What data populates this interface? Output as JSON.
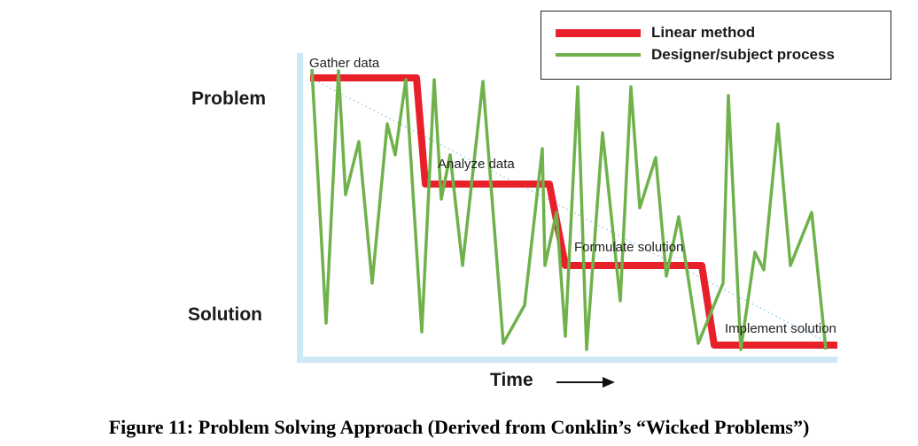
{
  "caption": "Figure 11: Problem Solving Approach (Derived from Conklin’s “Wicked Problems”)",
  "y_axis": {
    "top_label": "Problem",
    "bottom_label": "Solution"
  },
  "x_axis": {
    "label": "Time"
  },
  "legend": {
    "items": [
      {
        "label": "Linear method",
        "color": "#e8202a"
      },
      {
        "label": "Designer/subject process",
        "color": "#6fb24b"
      }
    ]
  },
  "steps": [
    {
      "label": "Gather data"
    },
    {
      "label": "Analyze data"
    },
    {
      "label": "Formulate solution"
    },
    {
      "label": "Implement solution"
    }
  ],
  "colors": {
    "axis": "#cfe8f6",
    "linear": "#e8202a",
    "process": "#6fb24b",
    "trend": "#9fd0ea"
  }
}
